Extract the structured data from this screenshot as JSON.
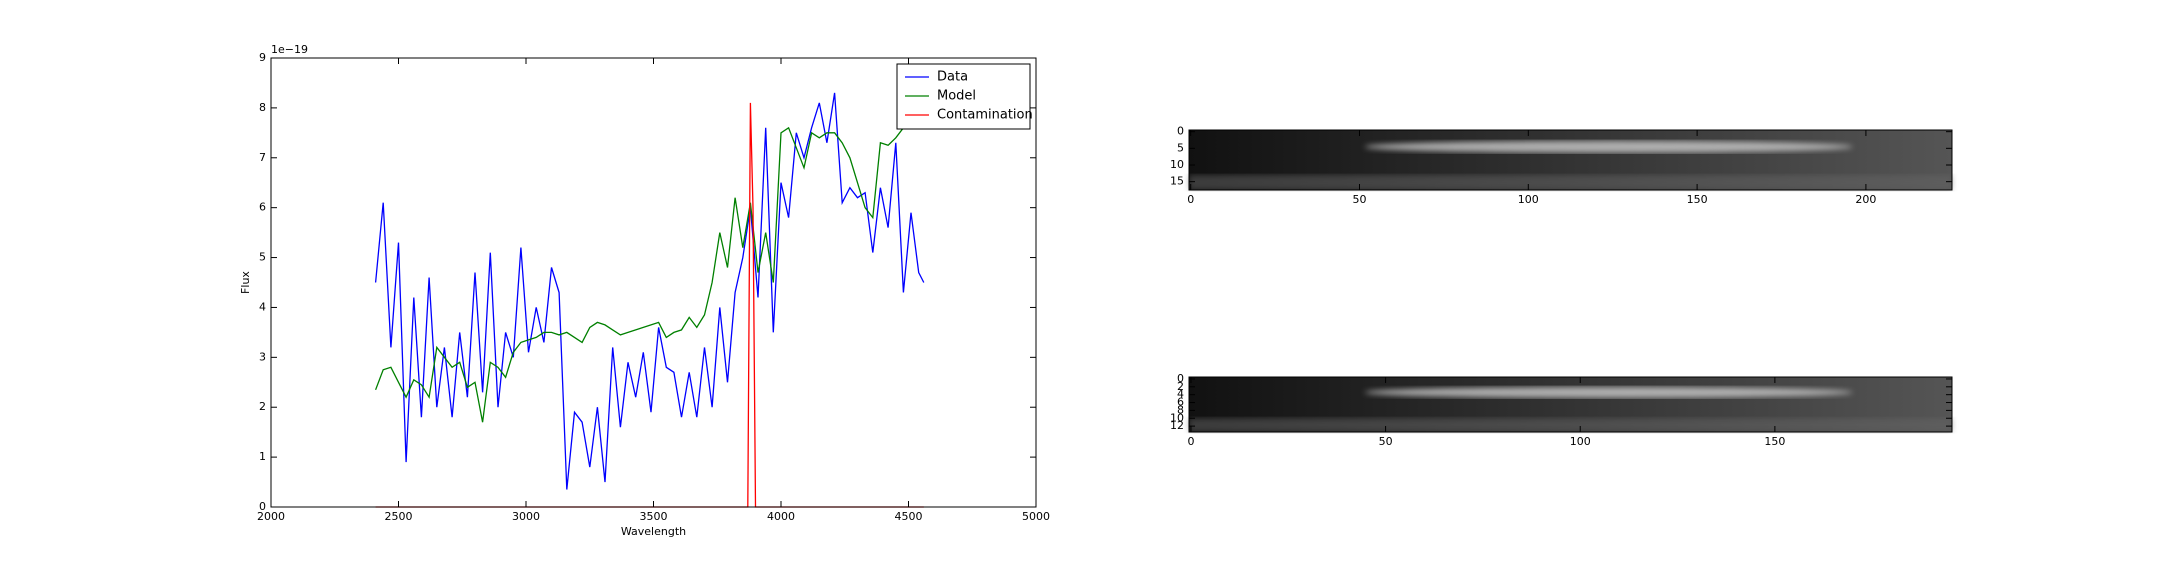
{
  "chart_data": [
    {
      "type": "line",
      "xlabel": "Wavelength",
      "ylabel": "Flux",
      "offset_text": "1e−19",
      "xlim": [
        2000,
        5000
      ],
      "xticks": [
        2000,
        2500,
        3000,
        3500,
        4000,
        4500,
        5000
      ],
      "ylim": [
        0,
        9
      ],
      "yticks": [
        0,
        1,
        2,
        3,
        4,
        5,
        6,
        7,
        8,
        9
      ],
      "legend": "upper right",
      "x": [
        2410,
        2440,
        2470,
        2500,
        2530,
        2560,
        2590,
        2620,
        2650,
        2680,
        2710,
        2740,
        2770,
        2800,
        2830,
        2860,
        2890,
        2920,
        2950,
        2980,
        3010,
        3040,
        3070,
        3100,
        3130,
        3160,
        3190,
        3220,
        3250,
        3280,
        3310,
        3340,
        3370,
        3400,
        3430,
        3460,
        3490,
        3520,
        3550,
        3580,
        3610,
        3640,
        3670,
        3700,
        3730,
        3760,
        3790,
        3820,
        3850,
        3880,
        3910,
        3940,
        3970,
        4000,
        4030,
        4060,
        4090,
        4120,
        4150,
        4180,
        4210,
        4240,
        4270,
        4300,
        4330,
        4360,
        4390,
        4420,
        4450,
        4480,
        4510,
        4540,
        4560
      ],
      "series": [
        {
          "name": "Data",
          "color": "#0000ff",
          "values": [
            4.5,
            6.1,
            3.2,
            5.3,
            0.9,
            4.2,
            1.8,
            4.6,
            2.0,
            3.2,
            1.8,
            3.5,
            2.2,
            4.7,
            2.3,
            5.1,
            2.0,
            3.5,
            3.0,
            5.2,
            3.1,
            4.0,
            3.3,
            4.8,
            4.3,
            0.35,
            1.9,
            1.7,
            0.8,
            2.0,
            0.5,
            3.2,
            1.6,
            2.9,
            2.2,
            3.1,
            1.9,
            3.6,
            2.8,
            2.7,
            1.8,
            2.7,
            1.8,
            3.2,
            2.0,
            4.0,
            2.5,
            4.3,
            5.0,
            6.0,
            4.2,
            7.6,
            3.5,
            6.5,
            5.8,
            7.5,
            7.0,
            7.6,
            8.1,
            7.3,
            8.3,
            6.1,
            6.4,
            6.2,
            6.3,
            5.1,
            6.4,
            5.6,
            7.3,
            4.3,
            5.9,
            4.7,
            4.5
          ]
        },
        {
          "name": "Model",
          "color": "#008000",
          "values": [
            2.35,
            2.75,
            2.8,
            2.5,
            2.2,
            2.55,
            2.45,
            2.2,
            3.2,
            3.0,
            2.8,
            2.9,
            2.4,
            2.5,
            1.7,
            2.9,
            2.8,
            2.6,
            3.1,
            3.3,
            3.35,
            3.4,
            3.5,
            3.5,
            3.45,
            3.5,
            3.4,
            3.3,
            3.6,
            3.7,
            3.65,
            3.55,
            3.45,
            3.5,
            3.55,
            3.6,
            3.65,
            3.7,
            3.4,
            3.5,
            3.55,
            3.8,
            3.6,
            3.85,
            4.5,
            5.5,
            4.8,
            6.2,
            5.2,
            6.1,
            4.7,
            5.5,
            4.5,
            7.5,
            7.6,
            7.2,
            6.8,
            7.5,
            7.4,
            7.5,
            7.5,
            7.3,
            7.0,
            6.5,
            6.0,
            5.8,
            7.3,
            7.25,
            7.4,
            7.6,
            7.8,
            7.6,
            7.8
          ]
        },
        {
          "name": "Contamination",
          "color": "#ff0000",
          "x": [
            2410,
            3870,
            3880,
            3890,
            3900,
            4560
          ],
          "values": [
            0,
            0,
            8.1,
            6.0,
            0,
            0
          ]
        }
      ]
    },
    {
      "type": "image",
      "xlim": [
        -0.5,
        225.5
      ],
      "xticks": [
        0,
        50,
        100,
        150,
        200
      ],
      "ylim": [
        17.5,
        -0.5
      ],
      "yticks": [
        0,
        5,
        10,
        15
      ]
    },
    {
      "type": "image",
      "xlim": [
        -0.5,
        195.5
      ],
      "xticks": [
        0,
        50,
        100,
        150
      ],
      "ylim": [
        13.5,
        -0.5
      ],
      "yticks": [
        0,
        2,
        4,
        6,
        8,
        10,
        12
      ]
    }
  ]
}
